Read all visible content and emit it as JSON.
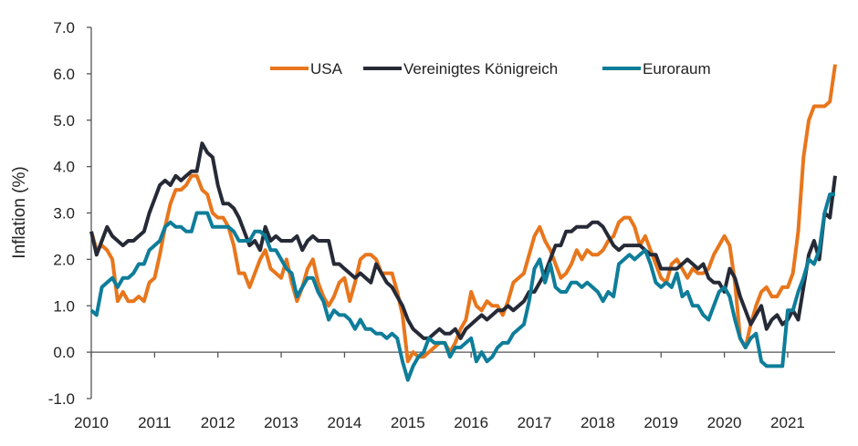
{
  "chart_data": {
    "type": "line",
    "title": "",
    "xlabel": "",
    "ylabel": "Inflation (%)",
    "ylim": [
      -1.0,
      7.0
    ],
    "yticks": [
      "-1.0",
      "0.0",
      "1.0",
      "2.0",
      "3.0",
      "4.0",
      "5.0",
      "6.0",
      "7.0"
    ],
    "xticks": [
      "2010",
      "2011",
      "2012",
      "2013",
      "2014",
      "2015",
      "2016",
      "2017",
      "2018",
      "2019",
      "2020",
      "2021"
    ],
    "x_start": "2010-01",
    "x_frequency": "monthly",
    "grid": false,
    "legend_position": "top",
    "series": [
      {
        "name": "USA",
        "color": "#E8761C",
        "values": [
          2.6,
          2.2,
          2.3,
          2.2,
          2.0,
          1.1,
          1.3,
          1.1,
          1.1,
          1.2,
          1.1,
          1.5,
          1.6,
          2.1,
          2.7,
          3.2,
          3.5,
          3.5,
          3.6,
          3.8,
          3.8,
          3.5,
          3.4,
          3.0,
          2.9,
          2.9,
          2.7,
          2.3,
          1.7,
          1.7,
          1.4,
          1.7,
          2.0,
          2.2,
          1.8,
          1.7,
          1.6,
          2.0,
          1.5,
          1.1,
          1.4,
          1.8,
          2.0,
          1.5,
          1.2,
          1.0,
          1.2,
          1.5,
          1.6,
          1.1,
          1.5,
          2.0,
          2.1,
          2.1,
          2.0,
          1.7,
          1.7,
          1.7,
          1.3,
          0.8,
          -0.2,
          0.0,
          -0.1,
          -0.1,
          0.0,
          0.1,
          0.2,
          0.2,
          0.0,
          0.2,
          0.5,
          0.7,
          1.3,
          1.0,
          0.9,
          1.1,
          1.0,
          1.0,
          0.8,
          1.1,
          1.5,
          1.6,
          1.7,
          2.1,
          2.5,
          2.7,
          2.4,
          2.2,
          1.9,
          1.6,
          1.7,
          1.9,
          2.2,
          2.0,
          2.2,
          2.1,
          2.1,
          2.2,
          2.4,
          2.5,
          2.8,
          2.9,
          2.9,
          2.7,
          2.3,
          2.5,
          2.2,
          1.9,
          1.6,
          1.5,
          1.9,
          2.0,
          1.8,
          1.6,
          1.8,
          1.7,
          1.7,
          1.8,
          2.1,
          2.3,
          2.5,
          2.3,
          1.5,
          0.3,
          0.1,
          0.6,
          1.0,
          1.3,
          1.4,
          1.2,
          1.2,
          1.4,
          1.4,
          1.7,
          2.6,
          4.2,
          5.0,
          5.3,
          5.3,
          5.3,
          5.4,
          6.2
        ]
      },
      {
        "name": "Vereinigtes Königreich",
        "color": "#262A36",
        "values": [
          2.6,
          2.1,
          2.4,
          2.7,
          2.5,
          2.4,
          2.3,
          2.4,
          2.4,
          2.5,
          2.6,
          3.0,
          3.3,
          3.6,
          3.7,
          3.6,
          3.8,
          3.7,
          3.8,
          3.9,
          3.9,
          4.5,
          4.3,
          4.2,
          3.6,
          3.2,
          3.2,
          3.1,
          2.9,
          2.6,
          2.3,
          2.4,
          2.2,
          2.7,
          2.4,
          2.5,
          2.4,
          2.4,
          2.4,
          2.5,
          2.2,
          2.4,
          2.5,
          2.4,
          2.4,
          2.4,
          1.9,
          1.9,
          1.8,
          1.7,
          1.6,
          1.7,
          1.6,
          1.5,
          1.9,
          1.7,
          1.5,
          1.4,
          1.2,
          1.0,
          0.7,
          0.5,
          0.4,
          0.3,
          0.3,
          0.4,
          0.5,
          0.4,
          0.4,
          0.5,
          0.3,
          0.5,
          0.6,
          0.7,
          0.8,
          0.7,
          0.8,
          0.9,
          0.9,
          1.0,
          0.9,
          1.0,
          1.1,
          1.3,
          1.3,
          1.5,
          1.7,
          2.0,
          2.3,
          2.3,
          2.6,
          2.6,
          2.7,
          2.7,
          2.7,
          2.8,
          2.8,
          2.7,
          2.5,
          2.3,
          2.2,
          2.3,
          2.3,
          2.3,
          2.3,
          2.2,
          2.1,
          2.1,
          1.8,
          1.8,
          1.8,
          1.8,
          1.9,
          2.0,
          1.9,
          1.8,
          1.9,
          1.6,
          1.5,
          1.5,
          1.3,
          1.8,
          1.6,
          1.2,
          0.9,
          0.6,
          0.8,
          1.0,
          0.5,
          0.7,
          0.8,
          0.6,
          0.7,
          0.9,
          0.7,
          1.4,
          2.1,
          2.4,
          2.0,
          3.0,
          2.9,
          3.8
        ]
      },
      {
        "name": "Euroraum",
        "color": "#0E7D9A",
        "values": [
          0.9,
          0.8,
          1.4,
          1.5,
          1.6,
          1.4,
          1.6,
          1.6,
          1.7,
          1.9,
          1.9,
          2.2,
          2.3,
          2.4,
          2.7,
          2.8,
          2.7,
          2.7,
          2.6,
          2.6,
          3.0,
          3.0,
          3.0,
          2.7,
          2.7,
          2.7,
          2.7,
          2.6,
          2.4,
          2.4,
          2.4,
          2.6,
          2.6,
          2.5,
          2.2,
          2.2,
          2.0,
          1.8,
          1.7,
          1.2,
          1.4,
          1.6,
          1.6,
          1.3,
          1.1,
          0.7,
          0.9,
          0.8,
          0.8,
          0.7,
          0.5,
          0.7,
          0.5,
          0.5,
          0.4,
          0.4,
          0.3,
          0.4,
          0.3,
          -0.2,
          -0.6,
          -0.3,
          -0.1,
          0.0,
          0.3,
          0.2,
          0.2,
          0.2,
          -0.1,
          0.1,
          0.1,
          0.2,
          0.3,
          -0.2,
          0.0,
          -0.2,
          -0.1,
          0.1,
          0.2,
          0.2,
          0.4,
          0.5,
          0.6,
          1.1,
          1.8,
          2.0,
          1.5,
          1.9,
          1.4,
          1.3,
          1.3,
          1.5,
          1.5,
          1.4,
          1.5,
          1.4,
          1.3,
          1.1,
          1.3,
          1.2,
          1.9,
          2.0,
          2.1,
          2.0,
          2.1,
          2.2,
          1.9,
          1.5,
          1.4,
          1.5,
          1.4,
          1.7,
          1.2,
          1.3,
          1.0,
          1.0,
          0.8,
          0.7,
          1.0,
          1.3,
          1.4,
          1.2,
          0.7,
          0.3,
          0.1,
          0.3,
          0.4,
          -0.2,
          -0.3,
          -0.3,
          -0.3,
          -0.3,
          0.9,
          0.9,
          1.3,
          1.6,
          2.0,
          1.9,
          2.2,
          3.0,
          3.4,
          3.4
        ]
      }
    ]
  }
}
